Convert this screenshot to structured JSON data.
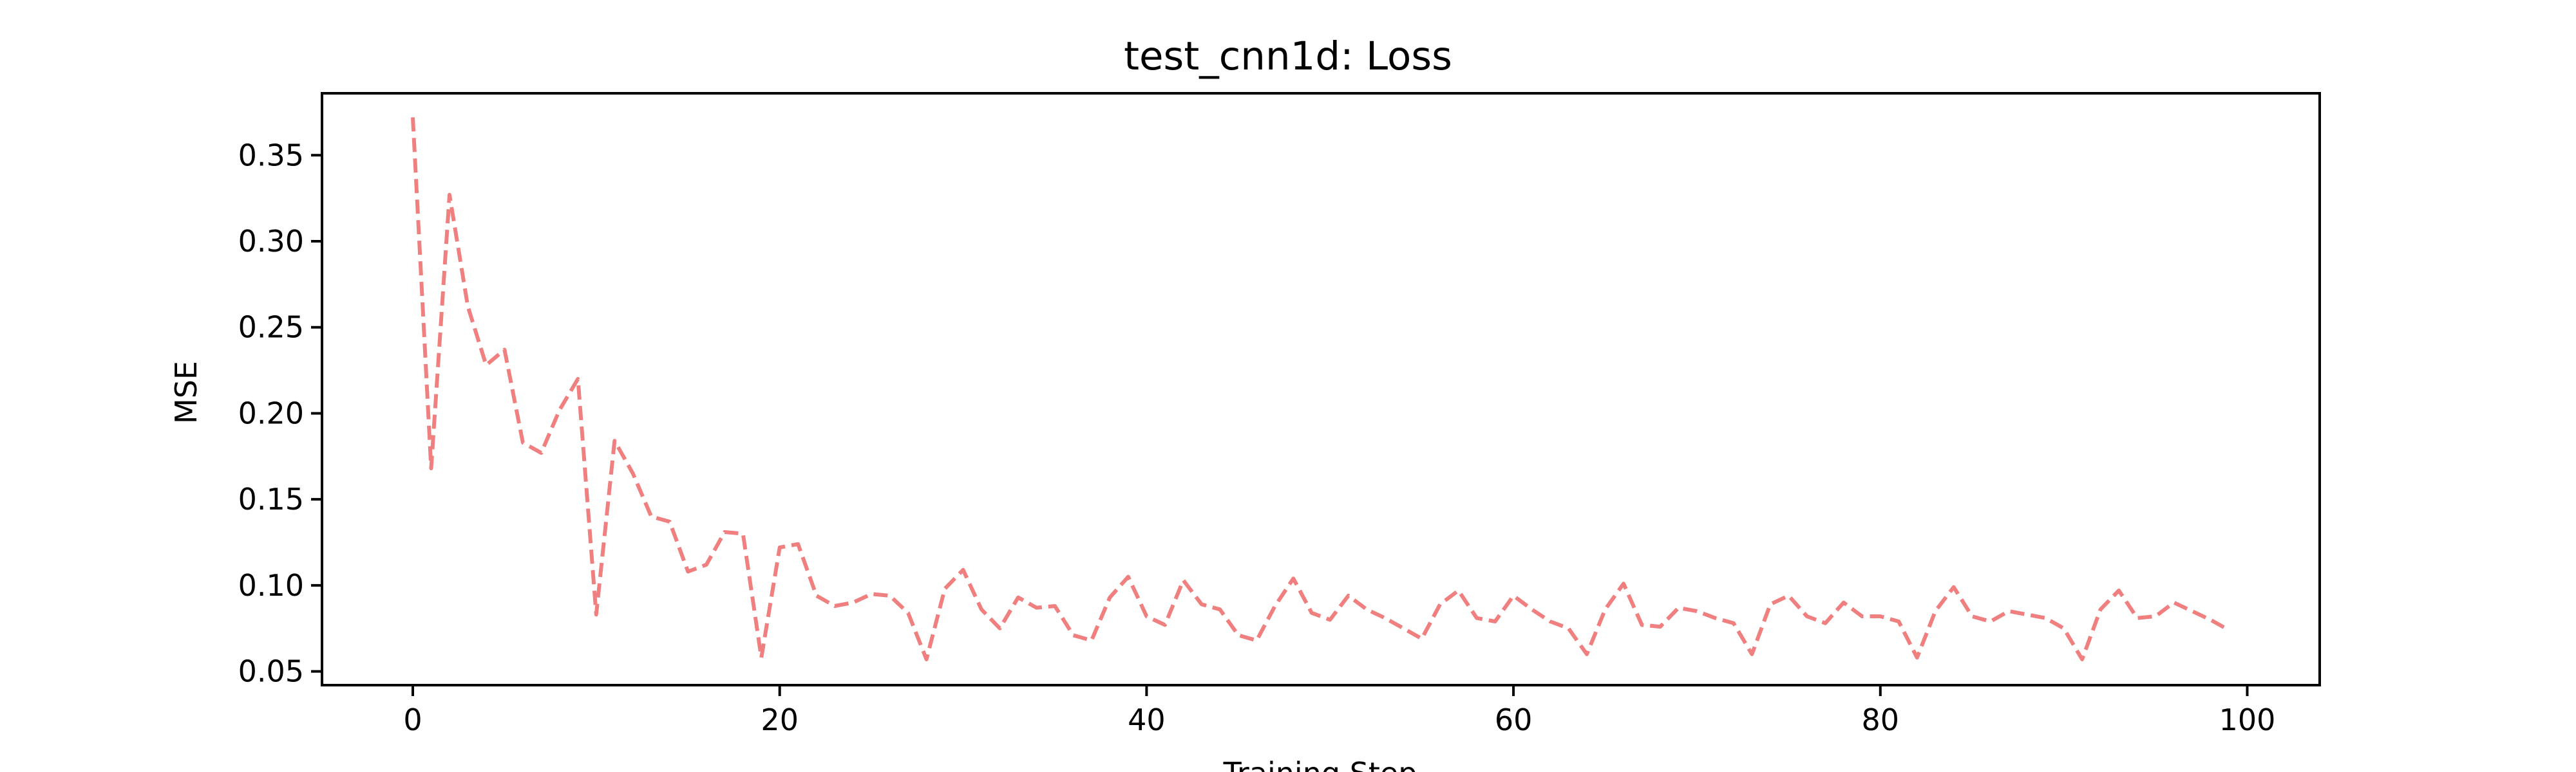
{
  "colors": {
    "series": "#f08080",
    "axes": "#000000",
    "background": "#ffffff"
  },
  "chart_data": {
    "type": "line",
    "title": "test_cnn1d: Loss",
    "xlabel": "Training Step",
    "ylabel": "MSE",
    "xlim": [
      -4.95,
      103.95
    ],
    "ylim": [
      0.042,
      0.386
    ],
    "xticks": [
      0,
      20,
      40,
      60,
      80,
      100
    ],
    "yticks": [
      0.05,
      0.1,
      0.15,
      0.2,
      0.25,
      0.3,
      0.35
    ],
    "xtick_labels": [
      "0",
      "20",
      "40",
      "60",
      "80",
      "100"
    ],
    "ytick_labels": [
      "0.05",
      "0.10",
      "0.15",
      "0.20",
      "0.25",
      "0.30",
      "0.35"
    ],
    "grid": false,
    "line_style": "dashed",
    "series": [
      {
        "x": [
          0,
          1,
          2,
          3,
          4,
          5,
          6,
          7,
          8,
          9,
          10,
          11,
          12,
          13,
          14,
          15,
          16,
          17,
          18,
          19,
          20,
          21,
          22,
          23,
          24,
          25,
          26,
          27,
          28,
          29,
          30,
          31,
          32,
          33,
          34,
          35,
          36,
          37,
          38,
          39,
          40,
          41,
          42,
          43,
          44,
          45,
          46,
          47,
          48,
          49,
          50,
          51,
          52,
          53,
          54,
          55,
          56,
          57,
          58,
          59,
          60,
          61,
          62,
          63,
          64,
          65,
          66,
          67,
          68,
          69,
          70,
          71,
          72,
          73,
          74,
          75,
          76,
          77,
          78,
          79,
          80,
          81,
          82,
          83,
          84,
          85,
          86,
          87,
          88,
          89,
          90,
          91,
          92,
          93,
          94,
          95,
          96,
          97,
          98,
          99
        ],
        "values": [
          0.372,
          0.168,
          0.327,
          0.262,
          0.228,
          0.237,
          0.183,
          0.177,
          0.202,
          0.22,
          0.083,
          0.184,
          0.165,
          0.14,
          0.137,
          0.108,
          0.112,
          0.131,
          0.13,
          0.058,
          0.122,
          0.124,
          0.094,
          0.088,
          0.09,
          0.095,
          0.094,
          0.084,
          0.057,
          0.098,
          0.109,
          0.086,
          0.075,
          0.093,
          0.087,
          0.088,
          0.071,
          0.068,
          0.093,
          0.105,
          0.082,
          0.077,
          0.103,
          0.089,
          0.086,
          0.071,
          0.068,
          0.088,
          0.104,
          0.084,
          0.08,
          0.094,
          0.086,
          0.081,
          0.075,
          0.069,
          0.089,
          0.097,
          0.081,
          0.079,
          0.094,
          0.086,
          0.079,
          0.075,
          0.06,
          0.086,
          0.101,
          0.077,
          0.076,
          0.087,
          0.085,
          0.081,
          0.078,
          0.06,
          0.089,
          0.094,
          0.082,
          0.078,
          0.09,
          0.082,
          0.082,
          0.079,
          0.058,
          0.085,
          0.099,
          0.082,
          0.079,
          0.085,
          0.083,
          0.081,
          0.075,
          0.057,
          0.086,
          0.097,
          0.081,
          0.082,
          0.09,
          0.085,
          0.08,
          0.074
        ]
      }
    ]
  }
}
